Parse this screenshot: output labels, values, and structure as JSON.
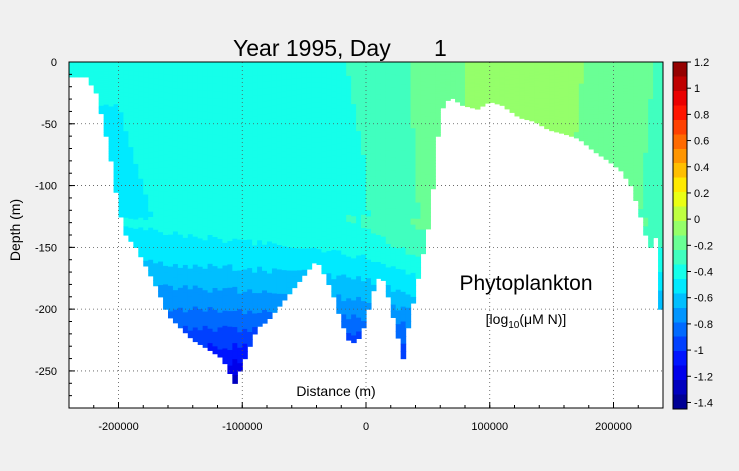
{
  "chart_data": {
    "type": "heatmap",
    "title": "Year 1995, Day",
    "day": "1",
    "xlabel": "Distance (m)",
    "ylabel": "Depth (m)",
    "xlim": [
      -240000,
      240000
    ],
    "ylim": [
      -280,
      0
    ],
    "xticks": [
      -200000,
      -100000,
      0,
      100000,
      200000
    ],
    "xtick_labels": [
      "-200000",
      "-100000",
      "0",
      "100000",
      "200000"
    ],
    "yticks": [
      0,
      -50,
      -100,
      -150,
      -200,
      -250
    ],
    "ytick_labels": [
      "0",
      "-50",
      "-100",
      "-150",
      "-200",
      "-250"
    ],
    "grid": true,
    "colorbar": {
      "min": -1.45,
      "max": 1.2,
      "ticks": [
        1.2,
        1,
        0.8,
        0.6,
        0.4,
        0.2,
        0,
        -0.2,
        -0.4,
        -0.6,
        -0.8,
        -1,
        -1.2,
        -1.4
      ],
      "tick_labels": [
        "1.2",
        "1",
        "0.8",
        "0.6",
        "0.4",
        "0.2",
        "0",
        "-0.2",
        "-0.4",
        "-0.6",
        "-0.8",
        "-1",
        "-1.2",
        "-1.4"
      ],
      "colormap": "jet"
    },
    "annotation": {
      "variable": "Phytoplankton",
      "units_prefix": "[log",
      "units_sub": "10",
      "units_suffix": "(μM N)]"
    },
    "bathymetry": [
      [
        -240000,
        -12
      ],
      [
        -232000,
        -12
      ],
      [
        -226000,
        -12
      ],
      [
        -218000,
        -25
      ],
      [
        -212000,
        -50
      ],
      [
        -206000,
        -80
      ],
      [
        -200000,
        -118
      ],
      [
        -194000,
        -140
      ],
      [
        -186000,
        -150
      ],
      [
        -178000,
        -165
      ],
      [
        -168000,
        -185
      ],
      [
        -160000,
        -205
      ],
      [
        -150000,
        -215
      ],
      [
        -140000,
        -225
      ],
      [
        -128000,
        -232
      ],
      [
        -116000,
        -240
      ],
      [
        -106000,
        -260
      ],
      [
        -96000,
        -235
      ],
      [
        -88000,
        -215
      ],
      [
        -80000,
        -210
      ],
      [
        -72000,
        -200
      ],
      [
        -64000,
        -190
      ],
      [
        -56000,
        -180
      ],
      [
        -48000,
        -170
      ],
      [
        -40000,
        -160
      ],
      [
        -32000,
        -175
      ],
      [
        -26000,
        -190
      ],
      [
        -20000,
        -210
      ],
      [
        -14000,
        -225
      ],
      [
        -8000,
        -228
      ],
      [
        -2000,
        -215
      ],
      [
        6000,
        -185
      ],
      [
        12000,
        -170
      ],
      [
        18000,
        -190
      ],
      [
        24000,
        -215
      ],
      [
        30000,
        -240
      ],
      [
        34000,
        -215
      ],
      [
        40000,
        -185
      ],
      [
        46000,
        -155
      ],
      [
        52000,
        -125
      ],
      [
        56000,
        -80
      ],
      [
        60000,
        -40
      ],
      [
        68000,
        -28
      ],
      [
        78000,
        -35
      ],
      [
        90000,
        -38
      ],
      [
        100000,
        -32
      ],
      [
        110000,
        -35
      ],
      [
        124000,
        -45
      ],
      [
        136000,
        -48
      ],
      [
        148000,
        -55
      ],
      [
        160000,
        -58
      ],
      [
        172000,
        -62
      ],
      [
        184000,
        -72
      ],
      [
        196000,
        -80
      ],
      [
        206000,
        -88
      ],
      [
        214000,
        -100
      ],
      [
        220000,
        -118
      ],
      [
        226000,
        -140
      ],
      [
        230000,
        -150
      ],
      [
        234000,
        -142
      ],
      [
        238000,
        -200
      ],
      [
        240000,
        -200
      ]
    ],
    "surface_field": [
      [
        -240000,
        -0.45
      ],
      [
        -200000,
        -0.45
      ],
      [
        -150000,
        -0.42
      ],
      [
        -100000,
        -0.4
      ],
      [
        -50000,
        -0.38
      ],
      [
        0,
        -0.33
      ],
      [
        40000,
        -0.22
      ],
      [
        80000,
        -0.12
      ],
      [
        120000,
        -0.05
      ],
      [
        150000,
        -0.08
      ],
      [
        190000,
        -0.15
      ],
      [
        240000,
        -0.25
      ]
    ],
    "field_scale_depth": 280,
    "field_scale_ref": -1.45
  }
}
